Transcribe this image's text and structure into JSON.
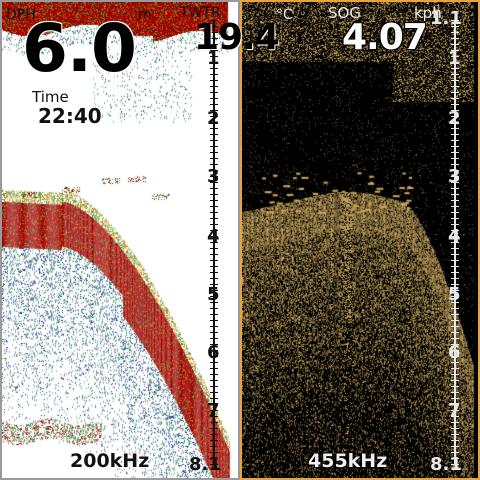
{
  "left_pane": {
    "depth_label": "DPH",
    "depth_unit": "m",
    "depth_value": "6.0",
    "time_label": "Time",
    "time_value": "22:40",
    "frequency": "200kHz",
    "scale_numbers": [
      "1",
      "2",
      "3",
      "4",
      "5",
      "6",
      "7",
      "8.1"
    ]
  },
  "right_pane": {
    "temp_label": "TWTR",
    "temp_unit": "°C",
    "temp_value": "19.4",
    "sog_label": "SOG",
    "sog_unit": "kph",
    "sog_value": "4.07",
    "frequency": "455kHz",
    "scale_numbers": [
      "1.1",
      "1",
      "2",
      "3",
      "4",
      "5",
      "6",
      "7",
      "8.1"
    ]
  },
  "colors": {
    "sonar_strong": "#a00000",
    "sonar_mid": "#e05a10",
    "sonar_weak": "#2aa040",
    "sonar_faint": "#1a2a8a",
    "downscan_bright": "#c8a860",
    "downscan_dim": "#6a5630",
    "right_border": "#e8a43a"
  }
}
